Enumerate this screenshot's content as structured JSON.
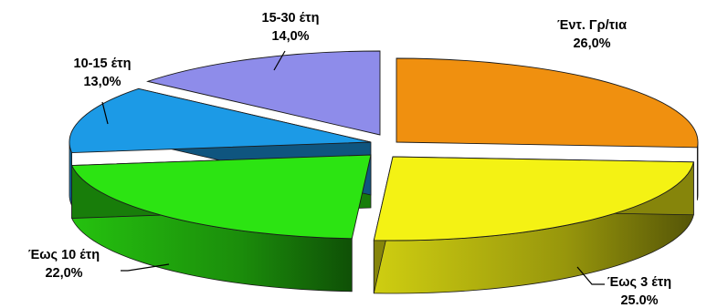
{
  "chart_data": {
    "type": "pie",
    "title": "",
    "style": "3d-exploded",
    "slices": [
      {
        "label": "Έντ. Γρ/τια",
        "value": 26.0,
        "value_label": "26,0%",
        "color": "#F0900F"
      },
      {
        "label": "Έως 3 έτη",
        "value": 25.0,
        "value_label": "25.0%",
        "color": "#F4F214"
      },
      {
        "label": "Έως 10 έτη",
        "value": 22.0,
        "value_label": "22,0%",
        "color": "#2CE412"
      },
      {
        "label": "10-15 έτη",
        "value": 13.0,
        "value_label": "13,0%",
        "color": "#1C9AE6"
      },
      {
        "label": "15-30 έτη",
        "value": 14.0,
        "value_label": "14,0%",
        "color": "#8E8CEA"
      }
    ]
  }
}
